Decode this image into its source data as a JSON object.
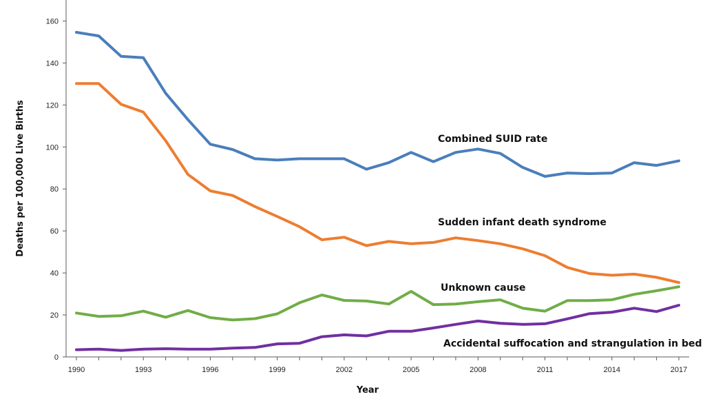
{
  "chart_data": {
    "type": "line",
    "title": "",
    "xlabel": "Year",
    "ylabel": "Deaths per 100,000 Live Births",
    "xlim": [
      1990,
      2017
    ],
    "ylim": [
      0,
      170
    ],
    "grid": false,
    "x_ticks": [
      1990,
      1993,
      1996,
      1999,
      2002,
      2005,
      2008,
      2011,
      2014,
      2017
    ],
    "y_ticks": [
      0,
      20,
      40,
      60,
      80,
      100,
      120,
      140,
      160
    ],
    "x": [
      1990,
      1991,
      1992,
      1993,
      1994,
      1995,
      1996,
      1997,
      1998,
      1999,
      2000,
      2001,
      2002,
      2003,
      2004,
      2005,
      2006,
      2007,
      2008,
      2009,
      2010,
      2011,
      2012,
      2013,
      2014,
      2015,
      2016,
      2017
    ],
    "series": [
      {
        "name": "Combined SUID rate",
        "color": "#4a7ebb",
        "values": [
          154.6,
          152.9,
          143.2,
          142.5,
          125.6,
          113,
          101.3,
          98.8,
          94.4,
          93.8,
          94.4,
          94.4,
          94.4,
          89.4,
          92.5,
          97.4,
          93,
          97.4,
          99,
          96.9,
          90.3,
          86,
          87.6,
          87.3,
          87.6,
          92.5,
          91.2,
          93.4
        ]
      },
      {
        "name": "Sudden infant death syndrome",
        "color": "#ed7d31",
        "values": [
          130.2,
          130.2,
          120.3,
          116.6,
          103,
          86.9,
          79.1,
          76.9,
          71.6,
          66.9,
          62,
          55.8,
          57,
          53,
          55,
          53.9,
          54.5,
          56.7,
          55.4,
          53.9,
          51.5,
          48.2,
          42.6,
          39.7,
          38.9,
          39.4,
          37.9,
          35.4
        ]
      },
      {
        "name": "Unknown cause",
        "color": "#70ad47",
        "values": [
          20.9,
          19.3,
          19.6,
          21.8,
          18.9,
          22.1,
          18.7,
          17.6,
          18.2,
          20.5,
          25.8,
          29.5,
          26.9,
          26.6,
          25.2,
          31.2,
          24.9,
          25.2,
          26.3,
          27.2,
          23.2,
          21.8,
          26.8,
          26.8,
          27.2,
          29.8,
          31.5,
          33.4
        ]
      },
      {
        "name": "Accidental suffocation and strangulation in bed",
        "color": "#7030a0",
        "values": [
          3.4,
          3.7,
          3.1,
          3.7,
          3.9,
          3.7,
          3.7,
          4.2,
          4.5,
          6.2,
          6.5,
          9.6,
          10.5,
          10,
          12.2,
          12.2,
          13.8,
          15.5,
          17.1,
          16,
          15.5,
          15.8,
          18.1,
          20.6,
          21.3,
          23.2,
          21.6,
          24.6
        ]
      }
    ]
  }
}
